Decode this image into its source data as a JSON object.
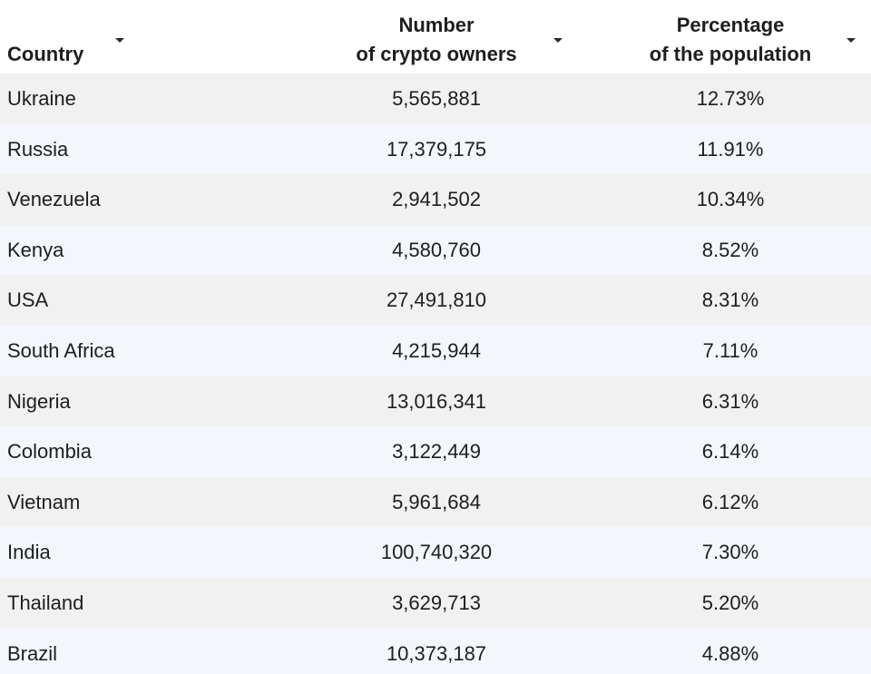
{
  "chart_data": {
    "type": "table",
    "columns": [
      {
        "label_lines": [
          "Country"
        ]
      },
      {
        "label_lines": [
          "Number",
          "of crypto owners"
        ]
      },
      {
        "label_lines": [
          "Percentage",
          "of the population"
        ]
      }
    ],
    "rows": [
      {
        "country": "Ukraine",
        "owners": "5,565,881",
        "percentage": "12.73%"
      },
      {
        "country": "Russia",
        "owners": "17,379,175",
        "percentage": "11.91%"
      },
      {
        "country": "Venezuela",
        "owners": "2,941,502",
        "percentage": "10.34%"
      },
      {
        "country": "Kenya",
        "owners": "4,580,760",
        "percentage": "8.52%"
      },
      {
        "country": "USA",
        "owners": "27,491,810",
        "percentage": "8.31%"
      },
      {
        "country": "South Africa",
        "owners": "4,215,944",
        "percentage": "7.11%"
      },
      {
        "country": "Nigeria",
        "owners": "13,016,341",
        "percentage": "6.31%"
      },
      {
        "country": "Colombia",
        "owners": "3,122,449",
        "percentage": "6.14%"
      },
      {
        "country": "Vietnam",
        "owners": "5,961,684",
        "percentage": "6.12%"
      },
      {
        "country": "India",
        "owners": "100,740,320",
        "percentage": "7.30%"
      },
      {
        "country": "Thailand",
        "owners": "3,629,713",
        "percentage": "5.20%"
      },
      {
        "country": "Brazil",
        "owners": "10,373,187",
        "percentage": "4.88%"
      }
    ]
  },
  "icons": {
    "sort": "sort-caret-down-icon"
  }
}
